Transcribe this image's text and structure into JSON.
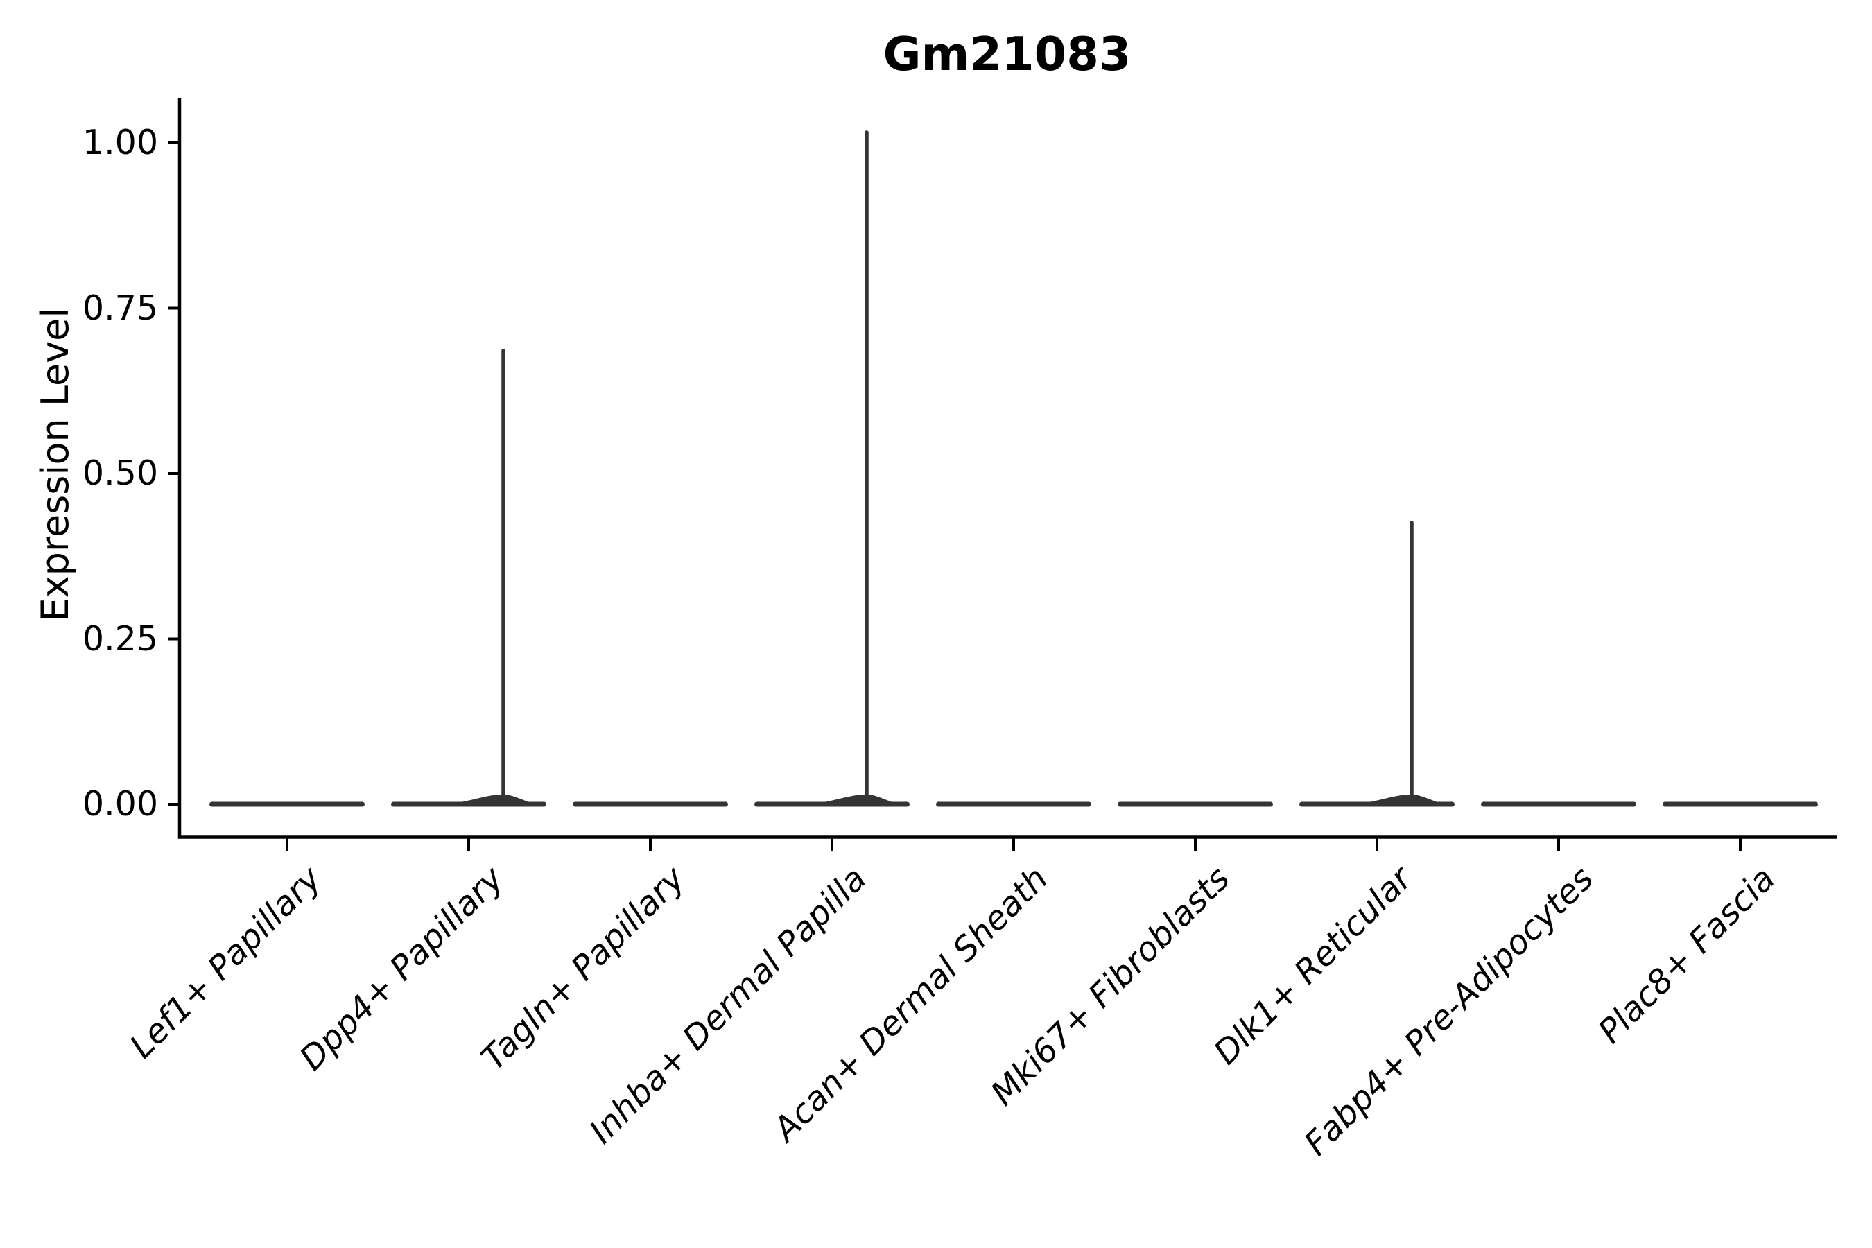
{
  "figure": {
    "background_color": "#ffffff",
    "axis_color": "#000000",
    "violin_color": "#343434",
    "text_color": "#000000"
  },
  "chart_data": {
    "type": "violin",
    "title": "Gm21083",
    "xlabel": "",
    "ylabel": "Expression Level",
    "legend": null,
    "grid": false,
    "ylim": [
      -0.05,
      1.07
    ],
    "ytick_values": [
      0.0,
      0.25,
      0.5,
      0.75,
      1.0
    ],
    "ytick_labels": [
      "0.00",
      "0.25",
      "0.50",
      "0.75",
      "1.00"
    ],
    "xticklabel_rotation_deg": 45,
    "xticklabel_style": "italic",
    "categories": [
      "Lef1+ Papillary",
      "Dpp4+ Papillary",
      "Tagln+ Papillary",
      "Inhba+ Dermal Papilla",
      "Acan+ Dermal Sheath",
      "Mki67+ Fibroblasts",
      "Dlk1+ Reticular",
      "Fabp4+ Pre-Adipocytes",
      "Plac8+ Fascia"
    ],
    "violins": [
      {
        "category": "Lef1+ Papillary",
        "bulk_expression": 0.0,
        "tail_max": 0.0
      },
      {
        "category": "Dpp4+ Papillary",
        "bulk_expression": 0.0,
        "tail_max": 0.69
      },
      {
        "category": "Tagln+ Papillary",
        "bulk_expression": 0.0,
        "tail_max": 0.0
      },
      {
        "category": "Inhba+ Dermal Papilla",
        "bulk_expression": 0.0,
        "tail_max": 1.02
      },
      {
        "category": "Acan+ Dermal Sheath",
        "bulk_expression": 0.0,
        "tail_max": 0.0
      },
      {
        "category": "Mki67+ Fibroblasts",
        "bulk_expression": 0.0,
        "tail_max": 0.0
      },
      {
        "category": "Dlk1+ Reticular",
        "bulk_expression": 0.0,
        "tail_max": 0.43
      },
      {
        "category": "Fabp4+ Pre-Adipocytes",
        "bulk_expression": 0.0,
        "tail_max": 0.0
      },
      {
        "category": "Plac8+ Fascia",
        "bulk_expression": 0.0,
        "tail_max": 0.0
      }
    ]
  }
}
